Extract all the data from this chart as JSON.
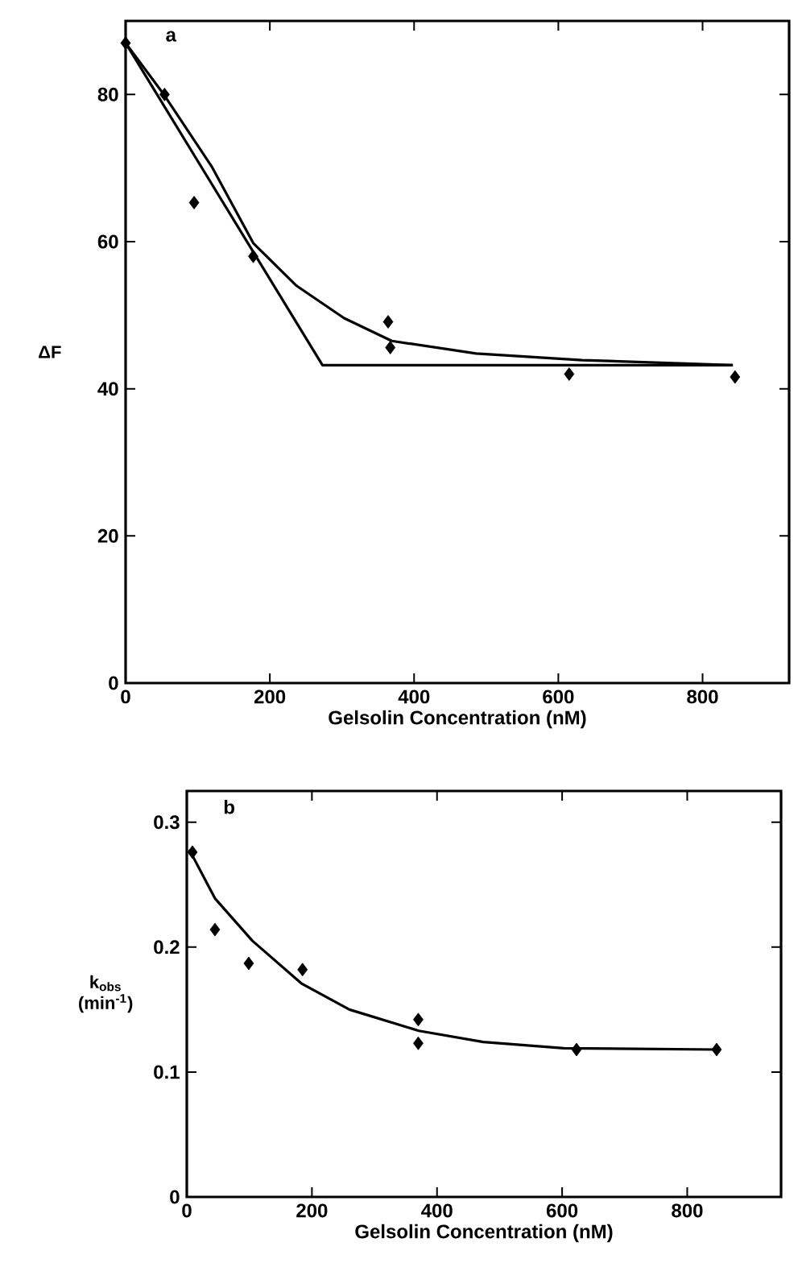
{
  "chart_data": [
    {
      "type": "scatter",
      "xlabel": "Gelsolin Concentration (nM)",
      "ylabel": "ΔF",
      "annotations": [
        "a"
      ],
      "xlim": [
        0,
        920
      ],
      "ylim": [
        0,
        90
      ],
      "xticks": [
        0,
        200,
        400,
        600,
        800
      ],
      "yticks": [
        0,
        20,
        40,
        60,
        80
      ],
      "series": [
        {
          "marker": "diamond",
          "color": "#000000",
          "x": [
            0,
            54,
            95,
            177,
            364,
            367,
            615,
            845
          ],
          "values": [
            87.0,
            80.0,
            65.3,
            58.0,
            49.1,
            45.6,
            42.0,
            41.6
          ]
        },
        {
          "type": "line",
          "color": "#000000",
          "x": [
            0,
            273,
            842
          ],
          "values": [
            87.0,
            43.2,
            43.2
          ]
        },
        {
          "type": "line",
          "color": "#000000",
          "x": [
            0,
            53,
            120,
            177,
            237,
            303,
            369,
            486,
            633,
            842
          ],
          "values": [
            87.0,
            80.0,
            70.1,
            59.8,
            54.0,
            49.6,
            46.5,
            44.8,
            43.9,
            43.2
          ]
        }
      ]
    },
    {
      "type": "scatter",
      "xlabel": "Gelsolin Concentration (nM)",
      "ylabel": "k$_{obs}$ (min$^{-1}$)",
      "annotations": [
        "b"
      ],
      "xlim": [
        0,
        950
      ],
      "ylim": [
        0,
        0.325
      ],
      "xticks": [
        0,
        200,
        400,
        600,
        800
      ],
      "yticks": [
        0,
        0.1,
        0.2,
        0.3
      ],
      "series": [
        {
          "marker": "diamond",
          "color": "#000000",
          "x": [
            9,
            45,
            99,
            185,
            370,
            370,
            623,
            847
          ],
          "values": [
            0.276,
            0.214,
            0.187,
            0.182,
            0.142,
            0.123,
            0.118,
            0.118
          ]
        },
        {
          "type": "line",
          "color": "#000000",
          "x": [
            4,
            45,
            105,
            183,
            260,
            371,
            474,
            603,
            847
          ],
          "values": [
            0.278,
            0.239,
            0.205,
            0.171,
            0.15,
            0.133,
            0.124,
            0.119,
            0.118
          ]
        }
      ]
    }
  ]
}
